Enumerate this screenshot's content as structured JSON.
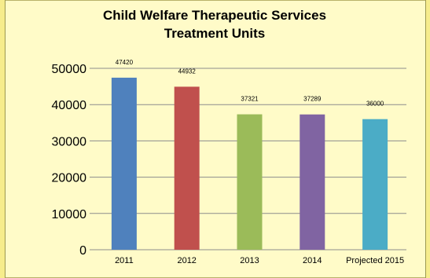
{
  "chart_data": {
    "type": "bar",
    "title": [
      "Child Welfare Therapeutic Services",
      "Treatment Units"
    ],
    "categories": [
      "2011",
      "2012",
      "2013",
      "2014",
      "Projected 2015"
    ],
    "values": [
      47420,
      44932,
      37321,
      37289,
      36000
    ],
    "data_labels": [
      "47420",
      "44932",
      "37321",
      "37289",
      "36000"
    ],
    "bar_colors": [
      "#4f81bd",
      "#c0504d",
      "#9bbb59",
      "#8064a2",
      "#4bacc6"
    ],
    "ylim": [
      0,
      50000
    ],
    "yticks": [
      0,
      10000,
      20000,
      30000,
      40000,
      50000
    ],
    "ytick_labels": [
      "0",
      "10000",
      "20000",
      "30000",
      "40000",
      "50000"
    ],
    "grid": true,
    "legend": false
  },
  "colors": {
    "background": "#fffbc8",
    "gridline": "#8c8c8c",
    "strip": "#f6ec8c"
  }
}
